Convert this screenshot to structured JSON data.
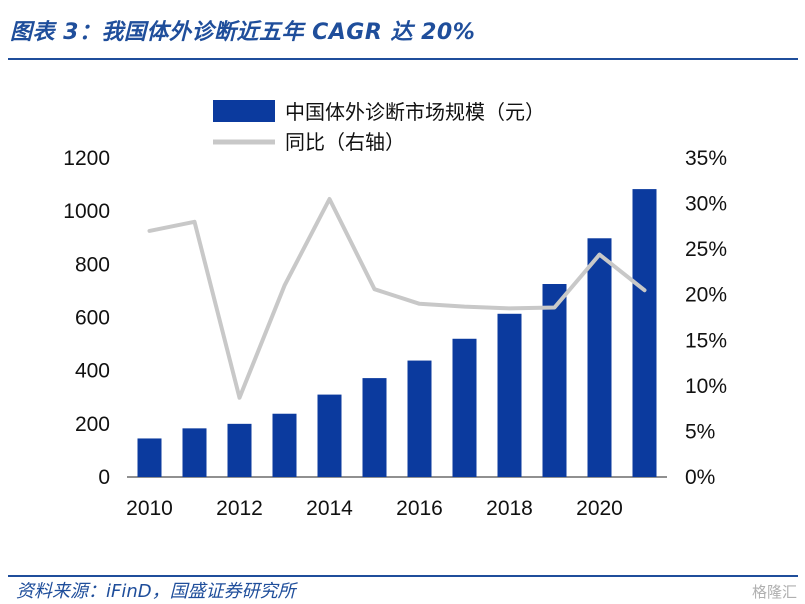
{
  "title": "图表 3：我国体外诊断近五年 CAGR 达 20%",
  "source": "资料来源：iFinD，国盛证券研究所",
  "watermark": "格隆汇",
  "colors": {
    "accent": "#1f4e9b",
    "bar": "#0b3a9e",
    "line": "#c8c8c8"
  },
  "chart_data": {
    "type": "bar",
    "categories": [
      "2010",
      "2011",
      "2012",
      "2013",
      "2014",
      "2015",
      "2016",
      "2017",
      "2018",
      "2019",
      "2020",
      "2021"
    ],
    "x_tick_labels": [
      "2010",
      "2012",
      "2014",
      "2016",
      "2018",
      "2020"
    ],
    "series": [
      {
        "name": "中国体外诊断市场规模（元）",
        "type": "bar",
        "axis": "left",
        "values": [
          145,
          183,
          200,
          238,
          310,
          372,
          438,
          520,
          614,
          726,
          898,
          1083
        ]
      },
      {
        "name": "同比（右轴）",
        "type": "line",
        "axis": "right",
        "values": [
          0.27,
          0.28,
          0.087,
          0.21,
          0.305,
          0.206,
          0.19,
          0.187,
          0.185,
          0.186,
          0.244,
          0.205
        ]
      }
    ],
    "y_left": {
      "min": 0,
      "max": 1200,
      "ticks": [
        "0",
        "200",
        "400",
        "600",
        "800",
        "1000",
        "1200"
      ]
    },
    "y_right": {
      "min": 0,
      "max": 0.35,
      "ticks": [
        "0%",
        "5%",
        "10%",
        "15%",
        "20%",
        "25%",
        "30%",
        "35%"
      ]
    },
    "legend": [
      "中国体外诊断市场规模（元）",
      "同比（右轴）"
    ],
    "legend_position": "top-center"
  }
}
